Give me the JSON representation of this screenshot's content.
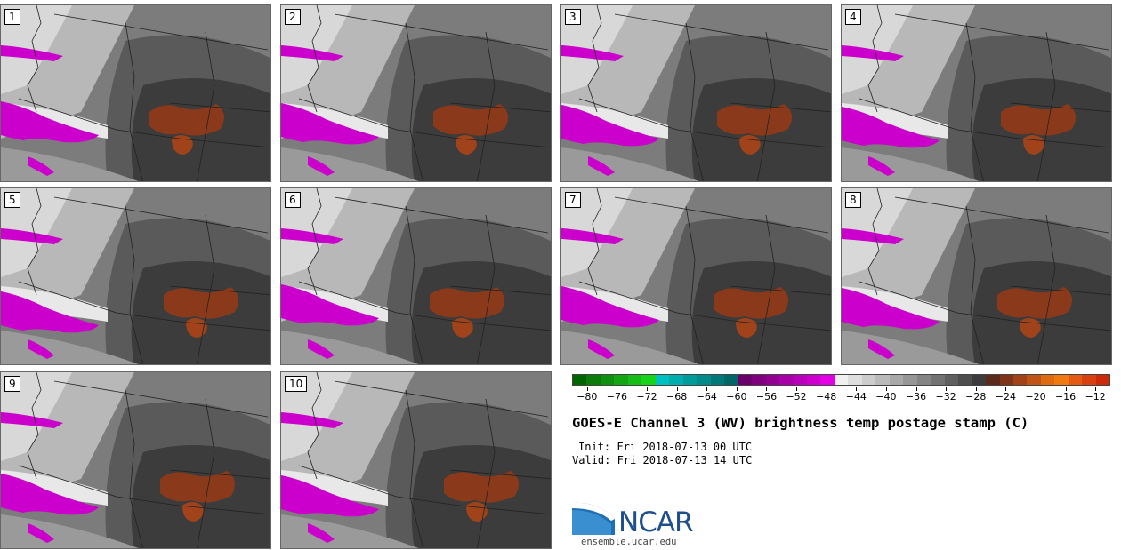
{
  "panels": [
    "1",
    "2",
    "3",
    "4",
    "5",
    "6",
    "7",
    "8",
    "9",
    "10"
  ],
  "colorbar": {
    "colors": [
      "#006400",
      "#0a7a0a",
      "#0f8f0f",
      "#13a613",
      "#16bd16",
      "#18d418",
      "#00c0c0",
      "#00aeae",
      "#009c9c",
      "#008a8a",
      "#007878",
      "#006666",
      "#6a006a",
      "#7e007e",
      "#920092",
      "#a600a6",
      "#ba00ba",
      "#ce00ce",
      "#e400e4",
      "#f0f0f0",
      "#dedede",
      "#cccccc",
      "#bababa",
      "#a8a8a8",
      "#969696",
      "#848484",
      "#727272",
      "#606060",
      "#4e4e4e",
      "#3c3c3c",
      "#5a2a1a",
      "#7e3418",
      "#a0421a",
      "#c05414",
      "#e06a10",
      "#f07a10",
      "#e45a10",
      "#d84010",
      "#cc2a0a"
    ],
    "ticks": [
      "−80",
      "−76",
      "−72",
      "−68",
      "−64",
      "−60",
      "−56",
      "−52",
      "−48",
      "−44",
      "−40",
      "−36",
      "−32",
      "−28",
      "−24",
      "−20",
      "−16",
      "−12"
    ],
    "range": [
      -82,
      -10
    ]
  },
  "title": "GOES-E Channel 3 (WV) brightness temp postage stamp (C)",
  "init_label": "Init: Fri 2018-07-13 00 UTC",
  "valid_label": "Valid: Fri 2018-07-13 14 UTC",
  "logo_text": "NCAR",
  "url": "ensemble.ucar.edu"
}
